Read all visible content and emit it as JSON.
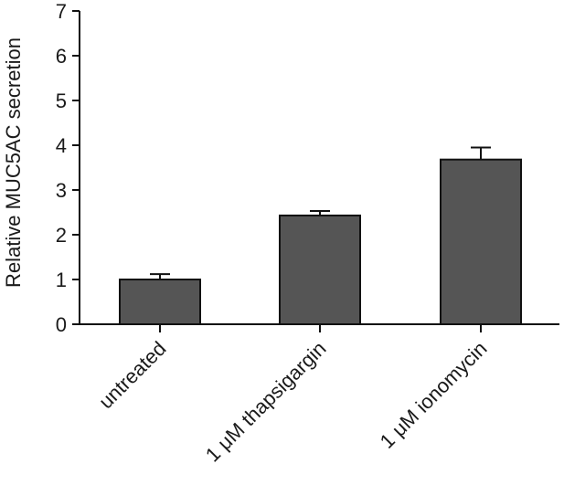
{
  "chart_data": {
    "type": "bar",
    "categories": [
      "untreated",
      "1 μM thapsigargin",
      "1 μM ionomycin"
    ],
    "values": [
      1.0,
      2.43,
      3.68
    ],
    "errors": [
      0.12,
      0.1,
      0.27
    ],
    "title": "",
    "xlabel": "",
    "ylabel": "Relative MUC5AC secretion",
    "ylim": [
      0,
      7
    ],
    "yticks": [
      "0",
      "1",
      "2",
      "3",
      "4",
      "5",
      "6",
      "7"
    ],
    "grid": false,
    "bar_color": "#555555"
  }
}
